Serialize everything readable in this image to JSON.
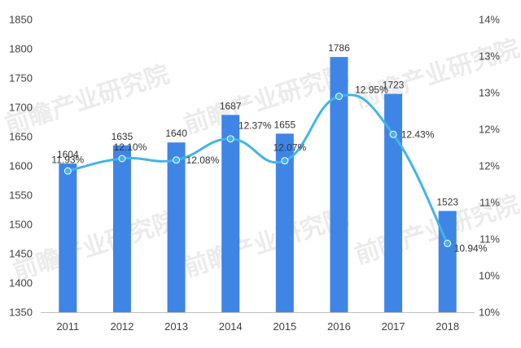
{
  "chart_data": {
    "type": "bar",
    "categories": [
      "2011",
      "2012",
      "2013",
      "2014",
      "2015",
      "2016",
      "2017",
      "2018"
    ],
    "series": [
      {
        "type": "bar",
        "values": [
          1604,
          1635,
          1640,
          1687,
          1655,
          1786,
          1723,
          1523
        ],
        "value_labels": [
          "1604",
          "1635",
          "1640",
          "1687",
          "1655",
          "1786",
          "1723",
          "1523"
        ],
        "color": "#3f85e6",
        "axis": "left"
      },
      {
        "type": "line",
        "values": [
          11.93,
          12.1,
          12.08,
          12.37,
          12.07,
          12.95,
          12.43,
          10.94
        ],
        "value_labels": [
          "11.93%",
          "12.10%",
          "12.08%",
          "12.37%",
          "12.07%",
          "12.95%",
          "12.43%",
          "10.94%"
        ],
        "color": "#44b4e6",
        "axis": "right",
        "smooth": true
      }
    ],
    "ylim_left": [
      1350,
      1850
    ],
    "yticks_left": [
      "1350",
      "1400",
      "1450",
      "1500",
      "1550",
      "1600",
      "1650",
      "1700",
      "1750",
      "1800",
      "1850"
    ],
    "ylim_right": [
      10,
      14
    ],
    "yticks_right": [
      "10%",
      "10%",
      "11%",
      "11%",
      "12%",
      "12%",
      "13%",
      "13%",
      "14%"
    ],
    "grid": false,
    "legend": "none",
    "watermark": "前瞻产业研究院"
  }
}
